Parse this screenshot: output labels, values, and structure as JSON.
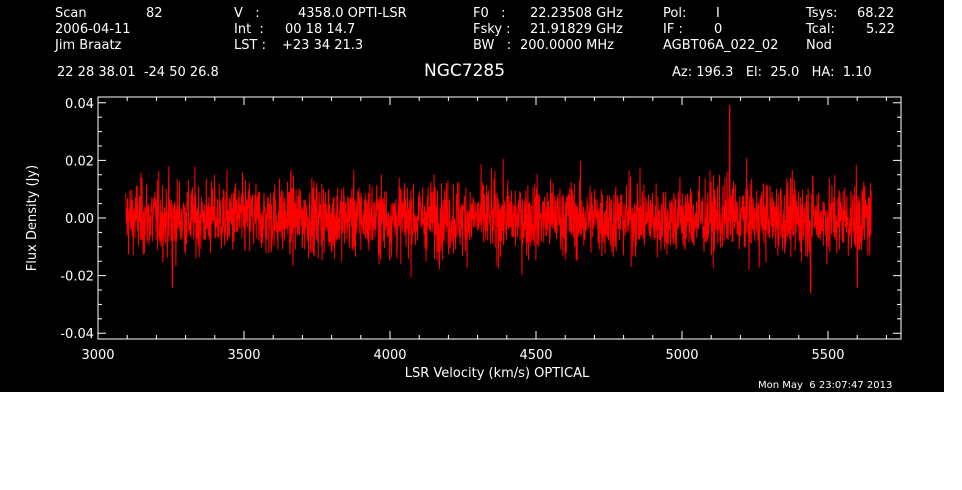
{
  "header": {
    "scan_label": "Scan",
    "scan_value": "82",
    "date": "2006-04-11",
    "observer": "Jim Braatz",
    "v_label": "V   :",
    "v_value": "4358.0 OPTI-LSR",
    "int_label": "Int  :",
    "int_value": "00 18 14.7",
    "lst_label": "LST :",
    "lst_value": "+23 34 21.3",
    "f0_label": "F0   :",
    "f0_value": "22.23508 GHz",
    "fsky_label": "Fsky :",
    "fsky_value": "21.91829 GHz",
    "bw_label": "BW   :",
    "bw_value": "200.0000 MHz",
    "pol_label": "Pol:",
    "pol_value": "I",
    "if_label": "IF :",
    "if_value": "0",
    "project": "AGBT06A_022_02",
    "tsys_label": "Tsys:",
    "tsys_value": "68.22",
    "tcal_label": "Tcal:",
    "tcal_value": "5.22",
    "mode": "Nod",
    "coords": "22 28 38.01  -24 50 26.8",
    "source": "NGC7285",
    "az_el_ha": "Az: 196.3   El:  25.0   HA:  1.10",
    "timestamp": "Mon May  6 23:07:47 2013"
  },
  "chart_data": {
    "type": "line",
    "title": "NGC7285",
    "xlabel": "LSR Velocity (km/s) OPTICAL",
    "ylabel": "Flux Density (Jy)",
    "xlim": [
      3000,
      5750
    ],
    "ylim": [
      -0.042,
      0.042
    ],
    "xticks": [
      3000,
      3500,
      4000,
      4500,
      5000,
      5500
    ],
    "xtick_labels": [
      "3000",
      "3500",
      "4000",
      "4500",
      "5000",
      "5500"
    ],
    "yticks": [
      -0.04,
      -0.02,
      0.0,
      0.02,
      0.04
    ],
    "ytick_labels": [
      "-0.04",
      "-0.02",
      "0.00",
      "0.02",
      "0.04"
    ],
    "grid": false,
    "series": [
      {
        "color": "#ff0000",
        "x_range": [
          3095,
          5648
        ],
        "noise_rms": 0.0065,
        "spikes": [
          {
            "x": 5163,
            "y": 0.039
          },
          {
            "x": 5440,
            "y": -0.026
          },
          {
            "x": 3255,
            "y": -0.024
          },
          {
            "x": 5600,
            "y": -0.024
          }
        ]
      }
    ]
  },
  "colors": {
    "background": "#000000",
    "foreground": "#ffffff",
    "trace": "#ff0000"
  }
}
